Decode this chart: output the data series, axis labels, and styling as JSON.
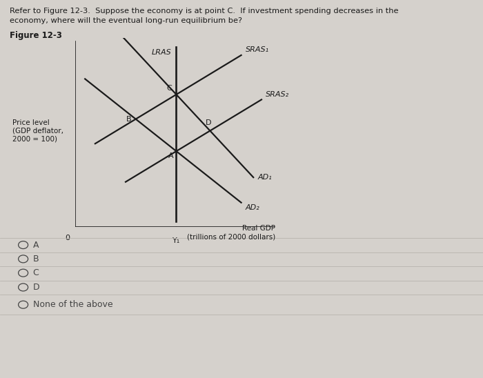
{
  "question_text_line1": "Refer to Figure 12-3.  Suppose the economy is at point C.  If investment spending decreases in the",
  "question_text_line2": "economy, where will the eventual long-run equilibrium be?",
  "figure_label": "Figure 12-3",
  "ylabel_line1": "Price level",
  "ylabel_line2": "(GDP deflator,",
  "ylabel_line3": "2000 = 100)",
  "xlabel_line1": "Real GDP",
  "xlabel_line2": "(trillions of 2000 dollars)",
  "x_tick_label": "Y₁",
  "lras_label": "LRAS",
  "sras1_label": "SRAS₁",
  "sras2_label": "SRAS₂",
  "ad1_label": "AD₁",
  "ad2_label": "AD₂",
  "point_A": "A",
  "point_B": "B",
  "point_C": "C",
  "point_D": "D",
  "choices": [
    "A",
    "B",
    "C",
    "D",
    "None of the above"
  ],
  "bg_color": "#d5d1cc",
  "line_color": "#1a1a1a",
  "text_color": "#1a1a1a",
  "choice_color": "#444444",
  "divider_color": "#b8b4ae"
}
